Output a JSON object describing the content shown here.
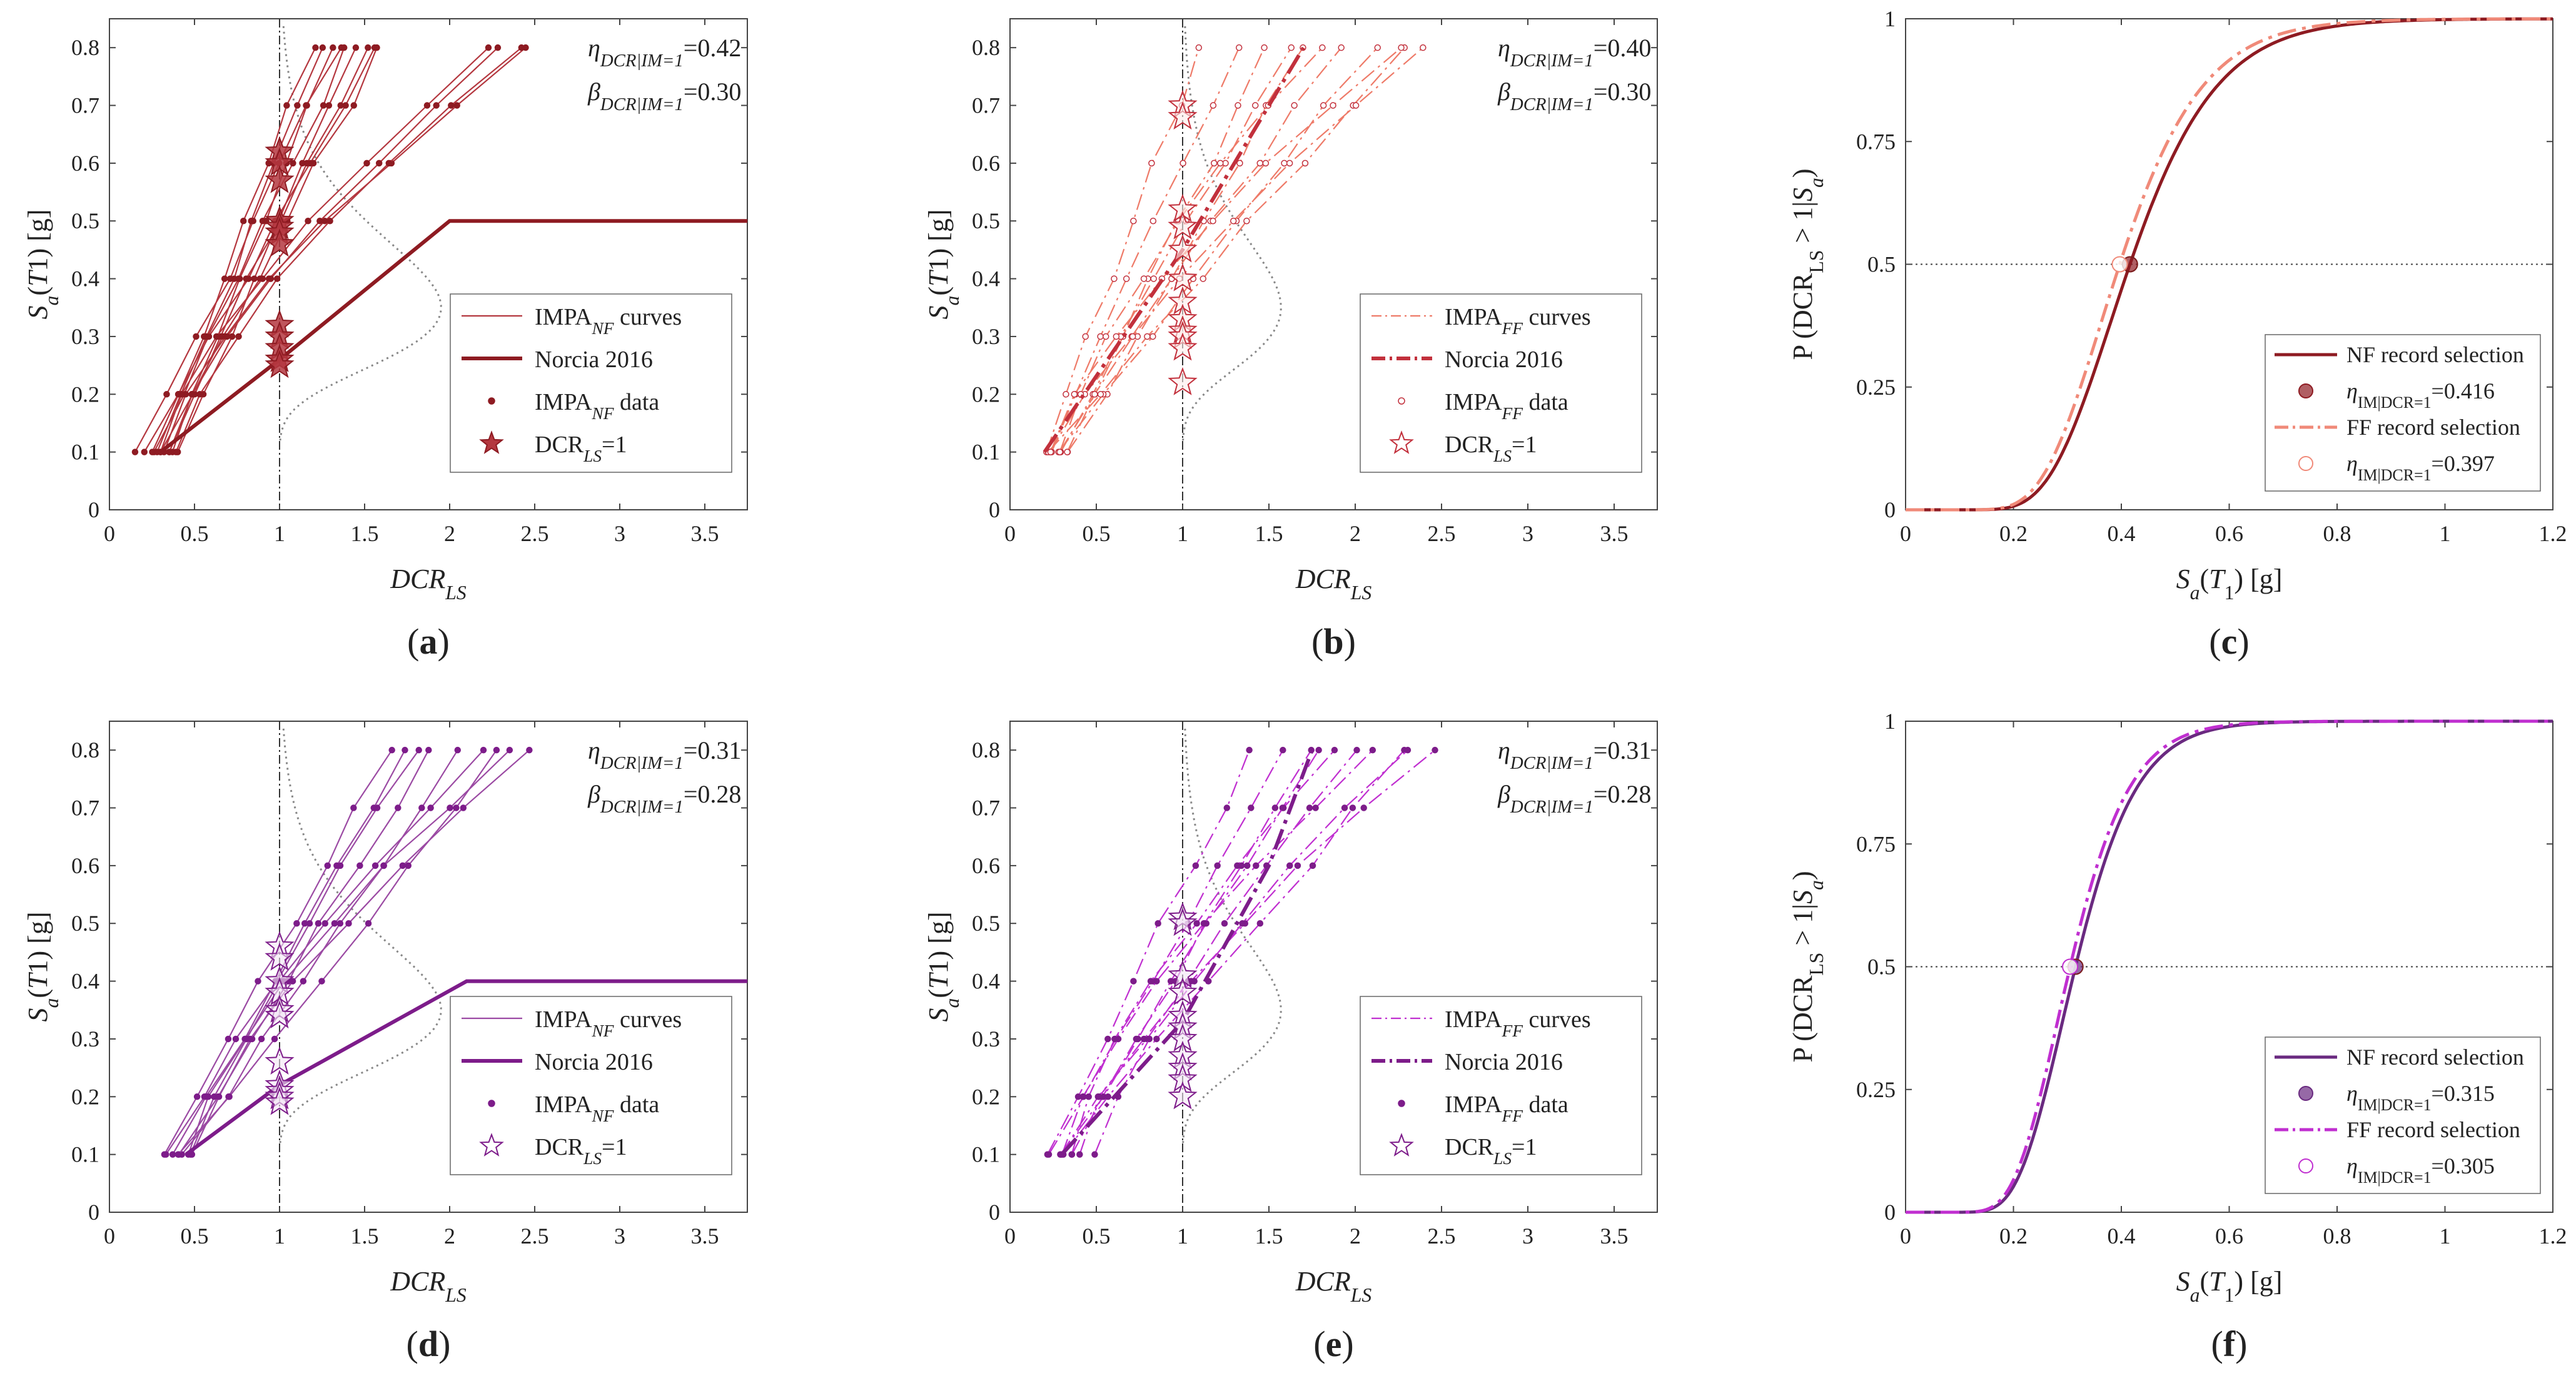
{
  "figure": {
    "panels": [
      {
        "id": "a",
        "type": "ida",
        "label": "(a)",
        "ylabel": "S_a(T1) [g]",
        "xlabel": "DCR_LS",
        "xlim": [
          0,
          3.75
        ],
        "ylim": [
          0,
          0.85
        ],
        "xticks": [
          0,
          0.5,
          1,
          1.5,
          2,
          2.5,
          3,
          3.5
        ],
        "yticks": [
          0,
          0.1,
          0.2,
          0.3,
          0.4,
          0.5,
          0.6,
          0.7,
          0.8
        ],
        "color": "#b4373f",
        "dark": "#8e1b22",
        "style": "solid",
        "stat_eta": "η",
        "stat_eta_sub": "DCR|IM=1",
        "stat_eta_val": "=0.42",
        "stat_beta": "β",
        "stat_beta_sub": "DCR|IM=1",
        "stat_beta_val": "=0.30",
        "legend": [
          {
            "text": "IMPA",
            "sub": "NF",
            "tail": " curves"
          },
          {
            "text": "Norcia 2016",
            "sub": "",
            "tail": ""
          },
          {
            "text": "IMPA",
            "sub": "NF",
            "tail": " data"
          },
          {
            "text": "DCR",
            "sub": "LS",
            "tail": "=1"
          }
        ]
      },
      {
        "id": "b",
        "type": "ida",
        "label": "(b)",
        "ylabel": "S_a(T1) [g]",
        "xlabel": "DCR_LS",
        "xlim": [
          0,
          3.75
        ],
        "ylim": [
          0,
          0.85
        ],
        "xticks": [
          0,
          0.5,
          1,
          1.5,
          2,
          2.5,
          3,
          3.5
        ],
        "yticks": [
          0,
          0.1,
          0.2,
          0.3,
          0.4,
          0.5,
          0.6,
          0.7,
          0.8
        ],
        "color": "#ee7a68",
        "dark": "#c2303c",
        "style": "dashdot",
        "stat_eta": "η",
        "stat_eta_sub": "DCR|IM=1",
        "stat_eta_val": "=0.40",
        "stat_beta": "β",
        "stat_beta_sub": "DCR|IM=1",
        "stat_beta_val": "=0.30",
        "legend": [
          {
            "text": "IMPA",
            "sub": "FF",
            "tail": " curves"
          },
          {
            "text": "Norcia 2016",
            "sub": "",
            "tail": ""
          },
          {
            "text": "IMPA",
            "sub": "FF",
            "tail": " data"
          },
          {
            "text": "DCR",
            "sub": "LS",
            "tail": "=1"
          }
        ]
      },
      {
        "id": "c",
        "type": "cdf",
        "label": "(c)",
        "ylabel": "P (DCR_LS > 1|S_a)",
        "xlabel": "S_a(T_1) [g]",
        "xlim": [
          0,
          1.2
        ],
        "ylim": [
          0,
          1
        ],
        "xticks": [
          0,
          0.2,
          0.4,
          0.6,
          0.8,
          1,
          1.2
        ],
        "yticks": [
          0,
          0.25,
          0.5,
          0.75,
          1
        ],
        "curves": [
          {
            "name": "NF record selection",
            "median": 0.416,
            "beta": 0.3,
            "color": "#8e1b22",
            "style": "solid"
          },
          {
            "name": "FF record selection",
            "median": 0.397,
            "beta": 0.3,
            "color": "#f08a79",
            "style": "dashdot"
          }
        ],
        "legend": [
          {
            "text": "NF record selection",
            "sub": "",
            "tail": ""
          },
          {
            "text": "η",
            "sub": "IM|DCR=1",
            "tail": "=0.416"
          },
          {
            "text": "FF record selection",
            "sub": "",
            "tail": ""
          },
          {
            "text": "η",
            "sub": "IM|DCR=1",
            "tail": "=0.397"
          }
        ]
      },
      {
        "id": "d",
        "type": "ida",
        "label": "(d)",
        "ylabel": "S_a(T1) [g]",
        "xlabel": "DCR_LS",
        "xlim": [
          0,
          3.75
        ],
        "ylim": [
          0,
          0.85
        ],
        "xticks": [
          0,
          0.5,
          1,
          1.5,
          2,
          2.5,
          3,
          3.5
        ],
        "yticks": [
          0,
          0.1,
          0.2,
          0.3,
          0.4,
          0.5,
          0.6,
          0.7,
          0.8
        ],
        "color": "#9b4aa3",
        "dark": "#7d1c8a",
        "style": "solid",
        "stat_eta": "η",
        "stat_eta_sub": "DCR|IM=1",
        "stat_eta_val": "=0.31",
        "stat_beta": "β",
        "stat_beta_sub": "DCR|IM=1",
        "stat_beta_val": "=0.28",
        "legend": [
          {
            "text": "IMPA",
            "sub": "NF",
            "tail": " curves"
          },
          {
            "text": "Norcia 2016",
            "sub": "",
            "tail": ""
          },
          {
            "text": "IMPA",
            "sub": "NF",
            "tail": " data"
          },
          {
            "text": "DCR",
            "sub": "LS",
            "tail": "=1"
          }
        ]
      },
      {
        "id": "e",
        "type": "ida",
        "label": "(e)",
        "ylabel": "S_a(T1) [g]",
        "xlabel": "DCR_LS",
        "xlim": [
          0,
          3.75
        ],
        "ylim": [
          0,
          0.85
        ],
        "xticks": [
          0,
          0.5,
          1,
          1.5,
          2,
          2.5,
          3,
          3.5
        ],
        "yticks": [
          0,
          0.1,
          0.2,
          0.3,
          0.4,
          0.5,
          0.6,
          0.7,
          0.8
        ],
        "color": "#c02fd0",
        "dark": "#7d1c8a",
        "style": "dashdot",
        "stat_eta": "η",
        "stat_eta_sub": "DCR|IM=1",
        "stat_eta_val": "=0.31",
        "stat_beta": "β",
        "stat_beta_sub": "DCR|IM=1",
        "stat_beta_val": "=0.28",
        "legend": [
          {
            "text": "IMPA",
            "sub": "FF",
            "tail": " curves"
          },
          {
            "text": "Norcia 2016",
            "sub": "",
            "tail": ""
          },
          {
            "text": "IMPA",
            "sub": "FF",
            "tail": " data"
          },
          {
            "text": "DCR",
            "sub": "LS",
            "tail": "=1"
          }
        ]
      },
      {
        "id": "f",
        "type": "cdf",
        "label": "(f)",
        "ylabel": "P (DCR_LS > 1|S_a)",
        "xlabel": "S_a(T_1) [g]",
        "xlim": [
          0,
          1.2
        ],
        "ylim": [
          0,
          1
        ],
        "xticks": [
          0,
          0.2,
          0.4,
          0.6,
          0.8,
          1,
          1.2
        ],
        "yticks": [
          0,
          0.25,
          0.5,
          0.75,
          1
        ],
        "curves": [
          {
            "name": "NF record selection",
            "median": 0.315,
            "beta": 0.28,
            "color": "#6a2a80",
            "style": "solid"
          },
          {
            "name": "FF record selection",
            "median": 0.305,
            "beta": 0.28,
            "color": "#c02fd0",
            "style": "dashdot"
          }
        ],
        "legend": [
          {
            "text": "NF record selection",
            "sub": "",
            "tail": ""
          },
          {
            "text": "η",
            "sub": "IM|DCR=1",
            "tail": "=0.315"
          },
          {
            "text": "FF record selection",
            "sub": "",
            "tail": ""
          },
          {
            "text": "η",
            "sub": "IM|DCR=1",
            "tail": "=0.305"
          }
        ]
      }
    ]
  },
  "chart_data": [
    {
      "panel": "a",
      "type": "line",
      "title": "",
      "xlabel": "DCR_LS",
      "ylabel": "S_a(T1) [g]",
      "xlim": [
        0,
        3.75
      ],
      "ylim": [
        0,
        0.85
      ],
      "series": [
        {
          "name": "IMPA_NF curves",
          "values": "fan of IDA curves from Sa=0.1 to 0.8"
        },
        {
          "name": "Norcia 2016",
          "x": [
            0.3,
            1.0,
            2.0,
            3.75
          ],
          "y": [
            0.1,
            0.26,
            0.5,
            0.5
          ]
        },
        {
          "name": "DCR_LS=1 (stars)",
          "x": [
            1,
            1,
            1,
            1,
            1,
            1,
            1,
            1,
            1,
            1,
            1,
            1
          ],
          "y": [
            0.62,
            0.6,
            0.57,
            0.5,
            0.49,
            0.48,
            0.46,
            0.32,
            0.3,
            0.28,
            0.26,
            0.25
          ]
        }
      ],
      "annotations": {
        "eta_DCR|IM=1": 0.42,
        "beta_DCR|IM=1": 0.3
      }
    },
    {
      "panel": "b",
      "type": "line",
      "title": "",
      "xlabel": "DCR_LS",
      "ylabel": "S_a(T1) [g]",
      "xlim": [
        0,
        3.75
      ],
      "ylim": [
        0,
        0.85
      ],
      "series": [
        {
          "name": "IMPA_FF curves",
          "values": "fan of IDA curves from Sa=0.1 to 0.8"
        },
        {
          "name": "Norcia 2016",
          "x": [
            0.2,
            1.0,
            1.4,
            1.7
          ],
          "y": [
            0.1,
            0.45,
            0.65,
            0.8
          ]
        },
        {
          "name": "DCR_LS=1 (stars)",
          "x": [
            1,
            1,
            1,
            1,
            1,
            1,
            1,
            1,
            1,
            1,
            1,
            1
          ],
          "y": [
            0.7,
            0.68,
            0.52,
            0.49,
            0.45,
            0.4,
            0.36,
            0.33,
            0.31,
            0.3,
            0.28,
            0.22
          ]
        }
      ],
      "annotations": {
        "eta_DCR|IM=1": 0.4,
        "beta_DCR|IM=1": 0.3
      }
    },
    {
      "panel": "c",
      "type": "line",
      "title": "",
      "xlabel": "S_a(T_1) [g]",
      "ylabel": "P (DCR_LS > 1|S_a)",
      "xlim": [
        0,
        1.2
      ],
      "ylim": [
        0,
        1
      ],
      "series": [
        {
          "name": "NF record selection",
          "median": 0.416,
          "beta": 0.3
        },
        {
          "name": "FF record selection",
          "median": 0.397,
          "beta": 0.3
        }
      ]
    },
    {
      "panel": "d",
      "type": "line",
      "title": "",
      "xlabel": "DCR_LS",
      "ylabel": "S_a(T1) [g]",
      "xlim": [
        0,
        3.75
      ],
      "ylim": [
        0,
        0.85
      ],
      "series": [
        {
          "name": "IMPA_NF curves",
          "values": "fan of IDA curves from Sa=0.1 to 0.8"
        },
        {
          "name": "Norcia 2016",
          "x": [
            0.45,
            1.0,
            2.1,
            3.75
          ],
          "y": [
            0.1,
            0.22,
            0.4,
            0.4
          ]
        },
        {
          "name": "DCR_LS=1 (stars)",
          "x": [
            1,
            1,
            1,
            1,
            1,
            1,
            1,
            1,
            1,
            1,
            1
          ],
          "y": [
            0.46,
            0.44,
            0.4,
            0.38,
            0.35,
            0.34,
            0.26,
            0.22,
            0.21,
            0.2,
            0.19
          ]
        }
      ],
      "annotations": {
        "eta_DCR|IM=1": 0.31,
        "beta_DCR|IM=1": 0.28
      }
    },
    {
      "panel": "e",
      "type": "line",
      "title": "",
      "xlabel": "DCR_LS",
      "ylabel": "S_a(T1) [g]",
      "xlim": [
        0,
        3.75
      ],
      "ylim": [
        0,
        0.85
      ],
      "series": [
        {
          "name": "IMPA_FF curves",
          "values": "fan of IDA curves from Sa=0.1 to 0.8"
        },
        {
          "name": "Norcia 2016",
          "x": [
            0.3,
            1.0,
            1.5,
            1.75
          ],
          "y": [
            0.1,
            0.33,
            0.6,
            0.8
          ]
        },
        {
          "name": "DCR_LS=1 (stars)",
          "x": [
            1,
            1,
            1,
            1,
            1,
            1,
            1,
            1,
            1,
            1,
            1
          ],
          "y": [
            0.51,
            0.5,
            0.41,
            0.38,
            0.34,
            0.32,
            0.3,
            0.27,
            0.25,
            0.23,
            0.2
          ]
        }
      ],
      "annotations": {
        "eta_DCR|IM=1": 0.31,
        "beta_DCR|IM=1": 0.28
      }
    },
    {
      "panel": "f",
      "type": "line",
      "title": "",
      "xlabel": "S_a(T_1) [g]",
      "ylabel": "P (DCR_LS > 1|S_a)",
      "xlim": [
        0,
        1.2
      ],
      "ylim": [
        0,
        1
      ],
      "series": [
        {
          "name": "NF record selection",
          "median": 0.315,
          "beta": 0.28
        },
        {
          "name": "FF record selection",
          "median": 0.305,
          "beta": 0.28
        }
      ]
    }
  ]
}
